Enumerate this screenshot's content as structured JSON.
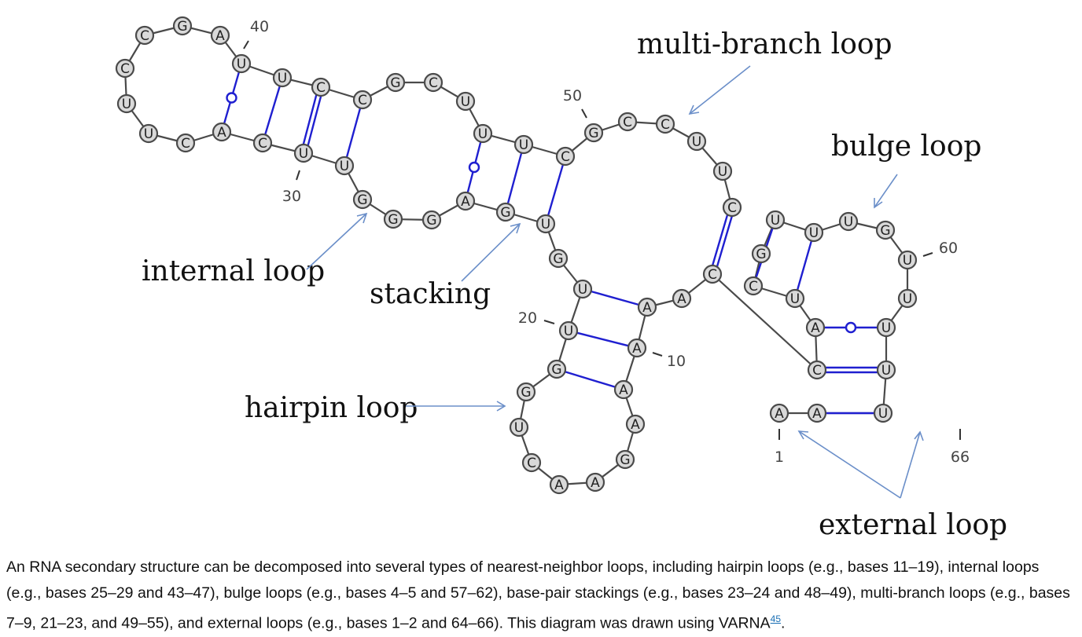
{
  "annotations": {
    "multibranch": "multi-branch loop",
    "bulge": "bulge loop",
    "internal": "internal loop",
    "stacking": "stacking",
    "hairpin": "hairpin loop",
    "external": "external loop"
  },
  "position_labels": {
    "n1": "1",
    "n10": "10",
    "n20": "20",
    "n30": "30",
    "n40": "40",
    "n50": "50",
    "n60": "60",
    "n66": "66"
  },
  "sequence": [
    "A",
    "A",
    "U",
    "U",
    "U",
    "U",
    "U",
    "G",
    "U",
    "U",
    "U",
    "G",
    "C",
    "U",
    "A",
    "C",
    "C",
    "A",
    "A",
    "A",
    "A",
    "A",
    "G",
    "A",
    "A",
    "C",
    "U",
    "G",
    "G",
    "U",
    "U",
    "G",
    "U",
    "G",
    "A",
    "G",
    "G",
    "G",
    "U",
    "U",
    "C",
    "A",
    "C",
    "U",
    "U",
    "C",
    "C",
    "G",
    "A",
    "U",
    "U",
    "C",
    "C",
    "G",
    "C",
    "U",
    "U",
    "U",
    "C",
    "G",
    "C",
    "C",
    "U",
    "U",
    "C",
    "C"
  ],
  "caption": {
    "text": "An RNA secondary structure can be decomposed into several types of nearest-neighbor loops, including hairpin loops (e.g., bases 11–19), internal loops (e.g., bases 25–29 and 43–47), bulge loops (e.g., bases 4–5 and 57–62), base-pair stackings (e.g., bases 23–24 and 48–49), multi-branch loops (e.g., bases 7–9, 21–23, and 49–55), and external loops (e.g., bases 1–2 and 64–66). This diagram was drawn using VARNA",
    "ref": "45",
    "end": "."
  }
}
